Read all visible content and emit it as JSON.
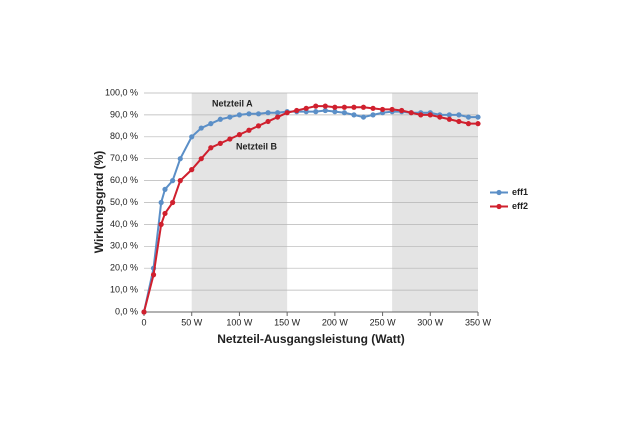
{
  "chart_data": {
    "type": "line",
    "x_label": "Netzteil-Ausgangsleistung (Watt)",
    "y_label": "Wirkungsgrad (%)",
    "xlim": [
      0,
      350
    ],
    "ylim": [
      0,
      100
    ],
    "xticks": [
      0,
      {
        "value": 50,
        "label": "50 W"
      },
      {
        "value": 100,
        "label": "100 W"
      },
      {
        "value": 150,
        "label": "150 W"
      },
      {
        "value": 200,
        "label": "200 W"
      },
      {
        "value": 250,
        "label": "250 W"
      },
      {
        "value": 300,
        "label": "300 W"
      },
      {
        "value": 350,
        "label": "350 W"
      }
    ],
    "yticks": [
      {
        "value": 0,
        "label": "0,0 %"
      },
      {
        "value": 10,
        "label": "10,0 %"
      },
      {
        "value": 20,
        "label": "20,0 %"
      },
      {
        "value": 30,
        "label": "30,0 %"
      },
      {
        "value": 40,
        "label": "40,0 %"
      },
      {
        "value": 50,
        "label": "50,0 %"
      },
      {
        "value": 60,
        "label": "60,0 %"
      },
      {
        "value": 70,
        "label": "70,0 %"
      },
      {
        "value": 80,
        "label": "80,0 %"
      },
      {
        "value": 90,
        "label": "90,0 %"
      },
      {
        "value": 100,
        "label": "100,0 %"
      }
    ],
    "grid": true,
    "legend": "right",
    "shaded_x_ranges": [
      [
        50,
        150
      ],
      [
        260,
        350
      ]
    ],
    "x": [
      0,
      10,
      18,
      22,
      30,
      38,
      50,
      60,
      70,
      80,
      90,
      100,
      110,
      120,
      130,
      140,
      150,
      160,
      170,
      180,
      190,
      200,
      210,
      220,
      230,
      240,
      250,
      260,
      270,
      280,
      290,
      300,
      310,
      320,
      330,
      340,
      350
    ],
    "series": [
      {
        "name": "eff1",
        "color": "#5b8fc7",
        "annotation": "Netzteil A",
        "values": [
          0,
          20,
          50,
          56,
          60,
          70,
          80,
          84,
          86,
          88,
          89,
          90,
          90.5,
          90.5,
          91,
          91,
          91.5,
          91.5,
          91.5,
          91.5,
          92,
          91.5,
          91,
          90,
          89,
          90,
          91,
          91.5,
          91.5,
          91,
          91,
          91,
          90,
          90,
          90,
          89,
          89
        ]
      },
      {
        "name": "eff2",
        "color": "#d0202e",
        "annotation": "Netzteil B",
        "values": [
          0,
          17,
          40,
          45,
          50,
          60,
          65,
          70,
          75,
          77,
          79,
          81,
          83,
          85,
          87,
          89,
          91,
          92,
          93,
          94,
          94,
          93.5,
          93.5,
          93.5,
          93.5,
          93,
          92.5,
          92.5,
          92,
          91,
          90,
          90,
          89,
          88,
          87,
          86,
          86
        ]
      }
    ]
  }
}
